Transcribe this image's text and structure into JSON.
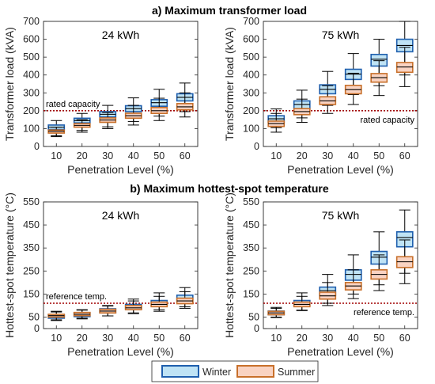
{
  "sections": {
    "a": "a) Maximum transformer load",
    "b": "b) Maximum hottest-spot temperature"
  },
  "legend": {
    "winter": "Winter",
    "summer": "Summer"
  },
  "colors": {
    "winter_fill": "#bfe3f5",
    "winter_edge": "#1f5fae",
    "summer_fill": "#f9d3c2",
    "summer_edge": "#c8702b",
    "whisker": "#000000",
    "median": "#000000",
    "refline": "#a00000"
  },
  "chart_data": [
    {
      "type": "box",
      "id": "load24",
      "panel_label": "24 kWh",
      "xlabel": "Penetration Level (%)",
      "ylabel": "Transformer load (kVA)",
      "categories": [
        "10",
        "20",
        "30",
        "40",
        "50",
        "60"
      ],
      "ylim": [
        0,
        700
      ],
      "yticks": [
        0,
        100,
        200,
        300,
        400,
        500,
        600,
        700
      ],
      "ref_value": 200,
      "ref_label": "rated capacity",
      "ref_label_pos": "above-left",
      "series": [
        {
          "name": "Winter",
          "boxes": [
            {
              "min": 60,
              "q1": 95,
              "median": 108,
              "q3": 120,
              "max": 145
            },
            {
              "min": 90,
              "q1": 132,
              "median": 145,
              "q3": 158,
              "max": 185
            },
            {
              "min": 110,
              "q1": 165,
              "median": 180,
              "q3": 195,
              "max": 230
            },
            {
              "min": 140,
              "q1": 195,
              "median": 212,
              "q3": 228,
              "max": 272
            },
            {
              "min": 170,
              "q1": 225,
              "median": 245,
              "q3": 262,
              "max": 320
            },
            {
              "min": 195,
              "q1": 255,
              "median": 275,
              "q3": 295,
              "max": 355
            }
          ]
        },
        {
          "name": "Summer",
          "boxes": [
            {
              "min": 55,
              "q1": 75,
              "median": 85,
              "q3": 92,
              "max": 108
            },
            {
              "min": 80,
              "q1": 108,
              "median": 118,
              "q3": 128,
              "max": 150
            },
            {
              "min": 100,
              "q1": 135,
              "median": 148,
              "q3": 160,
              "max": 190
            },
            {
              "min": 120,
              "q1": 158,
              "median": 172,
              "q3": 186,
              "max": 230
            },
            {
              "min": 145,
              "q1": 185,
              "median": 200,
              "q3": 218,
              "max": 270
            },
            {
              "min": 165,
              "q1": 205,
              "median": 222,
              "q3": 240,
              "max": 300
            }
          ]
        }
      ]
    },
    {
      "type": "box",
      "id": "load75",
      "panel_label": "75 kWh",
      "xlabel": "Penetration Level (%)",
      "ylabel": "Transformer load (kVA)",
      "categories": [
        "10",
        "20",
        "30",
        "40",
        "50",
        "60"
      ],
      "ylim": [
        0,
        700
      ],
      "yticks": [
        0,
        100,
        200,
        300,
        400,
        500,
        600,
        700
      ],
      "ref_value": 200,
      "ref_label": "rated capacity",
      "ref_label_pos": "below-right",
      "series": [
        {
          "name": "Winter",
          "boxes": [
            {
              "min": 105,
              "q1": 135,
              "median": 155,
              "q3": 172,
              "max": 210
            },
            {
              "min": 160,
              "q1": 210,
              "median": 235,
              "q3": 255,
              "max": 315
            },
            {
              "min": 230,
              "q1": 295,
              "median": 320,
              "q3": 345,
              "max": 420
            },
            {
              "min": 290,
              "q1": 375,
              "median": 405,
              "q3": 432,
              "max": 520
            },
            {
              "min": 340,
              "q1": 450,
              "median": 488,
              "q3": 515,
              "max": 600
            },
            {
              "min": 400,
              "q1": 530,
              "median": 565,
              "q3": 600,
              "max": 700
            }
          ]
        },
        {
          "name": "Summer",
          "boxes": [
            {
              "min": 80,
              "q1": 112,
              "median": 128,
              "q3": 142,
              "max": 185
            },
            {
              "min": 135,
              "q1": 178,
              "median": 195,
              "q3": 212,
              "max": 265
            },
            {
              "min": 185,
              "q1": 235,
              "median": 255,
              "q3": 278,
              "max": 340
            },
            {
              "min": 235,
              "q1": 295,
              "median": 318,
              "q3": 342,
              "max": 410
            },
            {
              "min": 285,
              "q1": 360,
              "median": 385,
              "q3": 408,
              "max": 480
            },
            {
              "min": 335,
              "q1": 415,
              "median": 445,
              "q3": 470,
              "max": 555
            }
          ]
        }
      ]
    },
    {
      "type": "box",
      "id": "temp24",
      "panel_label": "24 kWh",
      "xlabel": "Penetration Level (%)",
      "ylabel": "Hottest-spot temperature (°C)",
      "categories": [
        "10",
        "20",
        "30",
        "40",
        "50",
        "60"
      ],
      "ylim": [
        0,
        550
      ],
      "yticks": [
        0,
        50,
        150,
        250,
        350,
        450,
        550
      ],
      "ref_value": 110,
      "ref_label": "reference temp.",
      "ref_label_pos": "above-left",
      "series": [
        {
          "name": "Winter",
          "boxes": [
            {
              "min": 35,
              "q1": 45,
              "median": 52,
              "q3": 60,
              "max": 72
            },
            {
              "min": 42,
              "q1": 52,
              "median": 60,
              "q3": 68,
              "max": 80
            },
            {
              "min": 55,
              "q1": 68,
              "median": 78,
              "q3": 86,
              "max": 100
            },
            {
              "min": 68,
              "q1": 85,
              "median": 95,
              "q3": 105,
              "max": 128
            },
            {
              "min": 82,
              "q1": 100,
              "median": 112,
              "q3": 122,
              "max": 155
            },
            {
              "min": 95,
              "q1": 118,
              "median": 130,
              "q3": 145,
              "max": 178
            }
          ]
        },
        {
          "name": "Summer",
          "boxes": [
            {
              "min": 38,
              "q1": 50,
              "median": 56,
              "q3": 62,
              "max": 75
            },
            {
              "min": 45,
              "q1": 56,
              "median": 62,
              "q3": 70,
              "max": 82
            },
            {
              "min": 55,
              "q1": 68,
              "median": 76,
              "q3": 84,
              "max": 98
            },
            {
              "min": 65,
              "q1": 82,
              "median": 90,
              "q3": 100,
              "max": 120
            },
            {
              "min": 75,
              "q1": 95,
              "median": 105,
              "q3": 115,
              "max": 140
            },
            {
              "min": 88,
              "q1": 108,
              "median": 120,
              "q3": 132,
              "max": 160
            }
          ]
        }
      ]
    },
    {
      "type": "box",
      "id": "temp75",
      "panel_label": "75 kWh",
      "xlabel": "Penetration Level (%)",
      "ylabel": "Hottest-spot temperature (°C)",
      "categories": [
        "10",
        "20",
        "30",
        "40",
        "50",
        "60"
      ],
      "ylim": [
        0,
        550
      ],
      "yticks": [
        0,
        50,
        150,
        250,
        350,
        450,
        550
      ],
      "ref_value": 110,
      "ref_label": "reference temp.",
      "ref_label_pos": "below-right",
      "series": [
        {
          "name": "Winter",
          "boxes": [
            {
              "min": 48,
              "q1": 60,
              "median": 68,
              "q3": 76,
              "max": 92
            },
            {
              "min": 80,
              "q1": 100,
              "median": 110,
              "q3": 122,
              "max": 155
            },
            {
              "min": 110,
              "q1": 145,
              "median": 165,
              "q3": 180,
              "max": 235
            },
            {
              "min": 150,
              "q1": 210,
              "median": 235,
              "q3": 255,
              "max": 320
            },
            {
              "min": 190,
              "q1": 280,
              "median": 310,
              "q3": 335,
              "max": 420
            },
            {
              "min": 240,
              "q1": 355,
              "median": 395,
              "q3": 420,
              "max": 515
            }
          ]
        },
        {
          "name": "Summer",
          "boxes": [
            {
              "min": 50,
              "q1": 60,
              "median": 68,
              "q3": 75,
              "max": 88
            },
            {
              "min": 78,
              "q1": 95,
              "median": 105,
              "q3": 115,
              "max": 140
            },
            {
              "min": 100,
              "q1": 128,
              "median": 142,
              "q3": 158,
              "max": 200
            },
            {
              "min": 130,
              "q1": 168,
              "median": 185,
              "q3": 200,
              "max": 255
            },
            {
              "min": 165,
              "q1": 215,
              "median": 235,
              "q3": 255,
              "max": 320
            },
            {
              "min": 195,
              "q1": 265,
              "median": 290,
              "q3": 312,
              "max": 385
            }
          ]
        }
      ]
    }
  ]
}
